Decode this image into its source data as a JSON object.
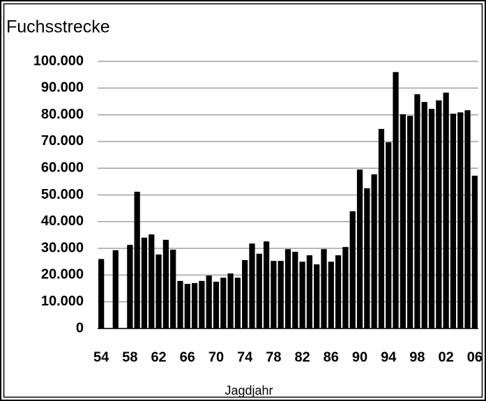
{
  "chart_data": {
    "type": "bar",
    "title": "Fuchsstrecke",
    "x_label": "Jagdjahr",
    "categories": [
      "54",
      null,
      null,
      null,
      "58",
      null,
      null,
      null,
      "62",
      null,
      null,
      null,
      "66",
      null,
      null,
      null,
      "70",
      null,
      null,
      null,
      "74",
      null,
      null,
      null,
      "78",
      null,
      null,
      null,
      "82",
      null,
      null,
      null,
      "86",
      null,
      null,
      null,
      "90",
      null,
      null,
      null,
      "94",
      null,
      null,
      null,
      "98",
      null,
      null,
      null,
      "02",
      null,
      null,
      null,
      "06"
    ],
    "values": [
      26000,
      null,
      29300,
      null,
      31300,
      51200,
      34000,
      35200,
      27700,
      33200,
      29500,
      17800,
      16700,
      17000,
      17800,
      19800,
      17500,
      19000,
      20600,
      19000,
      25600,
      31800,
      28000,
      32600,
      25300,
      25300,
      29700,
      28700,
      25000,
      27400,
      24000,
      29700,
      25000,
      27400,
      30500,
      43900,
      59500,
      52500,
      57700,
      74700,
      69700,
      96000,
      80200,
      79600,
      87700,
      84800,
      82200,
      85400,
      88300,
      80400,
      80900,
      81700,
      57200
    ],
    "color": "#000000",
    "ylim": [
      0,
      100000
    ],
    "yticks": [
      0,
      {
        "value": 10000,
        "label": "10.000"
      },
      {
        "value": 20000,
        "label": "20.000"
      },
      {
        "value": 30000,
        "label": "30.000"
      },
      {
        "value": 40000,
        "label": "40.000"
      },
      {
        "value": 50000,
        "label": "50.000"
      },
      {
        "value": 60000,
        "label": "60.000"
      },
      {
        "value": 70000,
        "label": "70.000"
      },
      {
        "value": 80000,
        "label": "80.000"
      },
      {
        "value": 90000,
        "label": "90.000"
      },
      {
        "value": 100000,
        "label": "100.000"
      }
    ],
    "grid": true
  }
}
